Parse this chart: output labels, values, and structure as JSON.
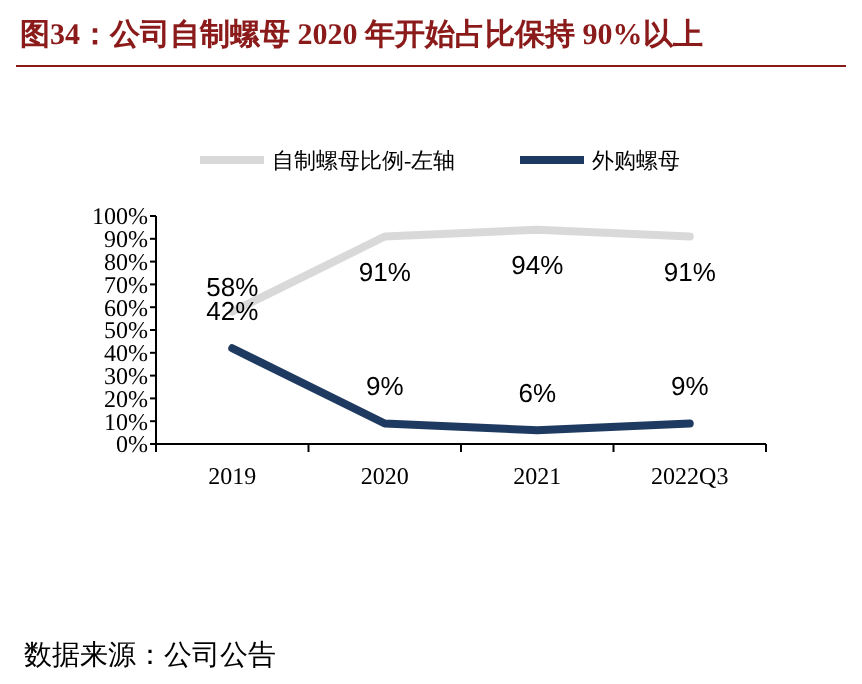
{
  "chart_data": {
    "type": "line",
    "title": "图34：公司自制螺母 2020 年开始占比保持 90%以上",
    "categories": [
      "2019",
      "2020",
      "2021",
      "2022Q3"
    ],
    "series": [
      {
        "name": "自制螺母比例-左轴",
        "color": "#d9d9d9",
        "values": [
          58,
          91,
          94,
          91
        ],
        "value_labels": [
          "58%",
          "91%",
          "94%",
          "91%"
        ]
      },
      {
        "name": "外购螺母",
        "color": "#1f3a60",
        "values": [
          42,
          9,
          6,
          9
        ],
        "value_labels": [
          "42%",
          "9%",
          "6%",
          "9%"
        ]
      }
    ],
    "ylim": [
      0,
      100
    ],
    "yticks": [
      {
        "value": 0,
        "label": "0%"
      },
      {
        "value": 10,
        "label": "10%"
      },
      {
        "value": 20,
        "label": "20%"
      },
      {
        "value": 30,
        "label": "30%"
      },
      {
        "value": 40,
        "label": "40%"
      },
      {
        "value": 50,
        "label": "50%"
      },
      {
        "value": 60,
        "label": "60%"
      },
      {
        "value": 70,
        "label": "70%"
      },
      {
        "value": 80,
        "label": "80%"
      },
      {
        "value": 90,
        "label": "90%"
      },
      {
        "value": 100,
        "label": "100%"
      }
    ],
    "grid": false,
    "legend": "top",
    "marker": "none",
    "line_style": "solid",
    "annotations": [
      "数据来源：公司公告"
    ]
  }
}
